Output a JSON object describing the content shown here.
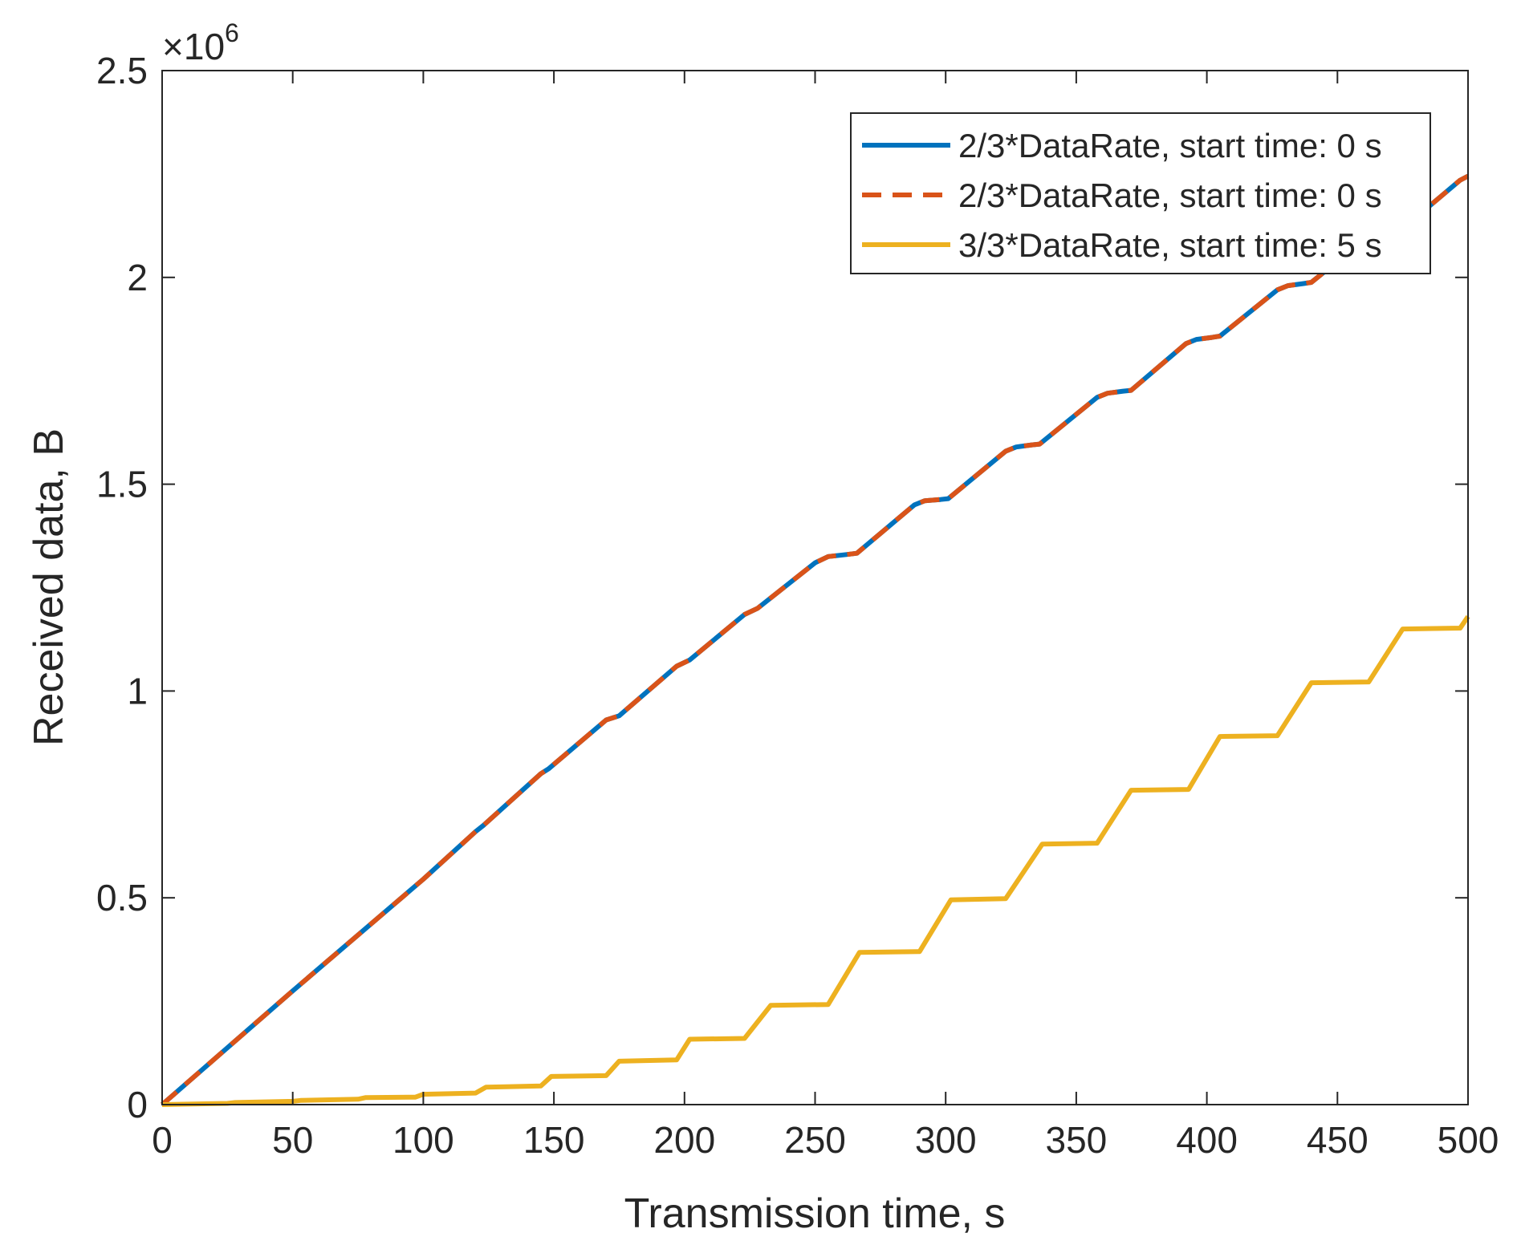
{
  "chart_data": {
    "type": "line",
    "title": "",
    "xlabel": "Transmission time, s",
    "ylabel": "Received data, B",
    "xlim": [
      0,
      500
    ],
    "ylim": [
      0,
      2500000
    ],
    "y_exponent_label": "×10",
    "y_exponent_power": "6",
    "xticks": [
      0,
      50,
      100,
      150,
      200,
      250,
      300,
      350,
      400,
      450,
      500
    ],
    "xtick_labels": [
      "0",
      "50",
      "100",
      "150",
      "200",
      "250",
      "300",
      "350",
      "400",
      "450",
      "500"
    ],
    "yticks": [
      0,
      500000,
      1000000,
      1500000,
      2000000,
      2500000
    ],
    "ytick_labels": [
      "0",
      "0.5",
      "1",
      "1.5",
      "2",
      "2.5"
    ],
    "grid": false,
    "legend_position": "top-right",
    "series": [
      {
        "name": "2/3*DataRate, start time: 0 s",
        "color": "#0072BD",
        "style": "solid",
        "x": [
          0,
          50,
          100,
          120,
          123,
          145,
          148,
          170,
          175,
          197,
          202,
          223,
          228,
          250,
          255,
          262,
          266,
          288,
          292,
          298,
          301,
          323,
          327,
          333,
          336,
          358,
          362,
          368,
          371,
          392,
          396,
          402,
          405,
          427,
          431,
          437,
          440,
          462,
          466,
          472,
          475,
          497,
          500
        ],
        "y": [
          0,
          275000,
          545000,
          660000,
          675000,
          800000,
          812000,
          930000,
          940000,
          1060000,
          1075000,
          1185000,
          1200000,
          1310000,
          1325000,
          1330000,
          1333000,
          1450000,
          1460000,
          1463000,
          1465000,
          1580000,
          1590000,
          1595000,
          1597000,
          1710000,
          1720000,
          1725000,
          1727000,
          1840000,
          1850000,
          1855000,
          1858000,
          1970000,
          1980000,
          1985000,
          1988000,
          2100000,
          2110000,
          2115000,
          2118000,
          2235000,
          2245000
        ]
      },
      {
        "name": "2/3*DataRate, start time: 0 s",
        "color": "#D95319",
        "style": "dashed",
        "x": [
          0,
          50,
          100,
          120,
          123,
          145,
          148,
          170,
          175,
          197,
          202,
          223,
          228,
          250,
          255,
          262,
          266,
          288,
          292,
          298,
          301,
          323,
          327,
          333,
          336,
          358,
          362,
          368,
          371,
          392,
          396,
          402,
          405,
          427,
          431,
          437,
          440,
          462,
          466,
          472,
          475,
          497,
          500
        ],
        "y": [
          0,
          275000,
          545000,
          660000,
          675000,
          800000,
          812000,
          930000,
          940000,
          1060000,
          1075000,
          1185000,
          1200000,
          1310000,
          1325000,
          1330000,
          1333000,
          1450000,
          1460000,
          1463000,
          1465000,
          1580000,
          1590000,
          1595000,
          1597000,
          1710000,
          1720000,
          1725000,
          1727000,
          1840000,
          1850000,
          1855000,
          1858000,
          1970000,
          1980000,
          1985000,
          1988000,
          2100000,
          2110000,
          2115000,
          2118000,
          2235000,
          2245000
        ]
      },
      {
        "name": "3/3*DataRate, start time: 5 s",
        "color": "#EDB120",
        "style": "solid",
        "x": [
          0,
          25,
          28,
          50,
          53,
          75,
          78,
          97,
          100,
          120,
          124,
          145,
          149,
          170,
          175,
          197,
          202,
          223,
          233,
          255,
          267,
          290,
          302,
          323,
          337,
          358,
          371,
          393,
          405,
          427,
          440,
          462,
          475,
          497,
          500
        ],
        "y": [
          0,
          3000,
          5000,
          8000,
          10000,
          13000,
          17000,
          18000,
          25000,
          28000,
          42000,
          45000,
          68000,
          70000,
          105000,
          108000,
          158000,
          160000,
          240000,
          242000,
          368000,
          370000,
          495000,
          498000,
          630000,
          632000,
          760000,
          762000,
          890000,
          892000,
          1020000,
          1022000,
          1150000,
          1152000,
          1180000
        ]
      }
    ]
  }
}
